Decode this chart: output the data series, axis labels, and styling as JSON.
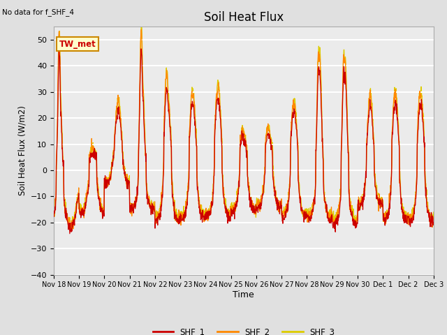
{
  "title": "Soil Heat Flux",
  "subtitle": "No data for f_SHF_4",
  "ylabel": "Soil Heat Flux (W/m2)",
  "xlabel": "Time",
  "ylim": [
    -40,
    55
  ],
  "bg_color": "#e0e0e0",
  "plot_bg_color": "#ebebeb",
  "line_colors": [
    "#cc0000",
    "#ff8800",
    "#ddcc00"
  ],
  "legend_labels": [
    "SHF_1",
    "SHF_2",
    "SHF_3"
  ],
  "annotation_label": "TW_met",
  "annotation_bg": "#ffffcc",
  "annotation_border": "#cc8800",
  "x_tick_labels": [
    "Nov 18",
    "Nov 19",
    "Nov 20",
    "Nov 21",
    "Nov 22",
    "Nov 23",
    "Nov 24",
    "Nov 25",
    "Nov 26",
    "Nov 27",
    "Nov 28",
    "Nov 29",
    "Nov 30",
    "Dec 1",
    "Dec 2",
    "Dec 3"
  ],
  "n_days": 15,
  "pts_per_day": 96
}
